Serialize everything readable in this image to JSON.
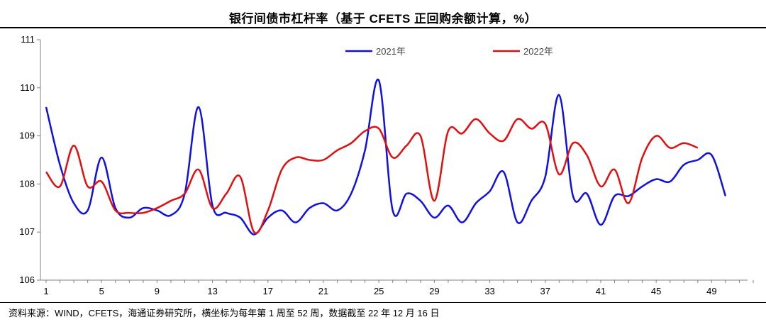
{
  "title": "银行间债市杠杆率（基于 CFETS 正回购余额计算，%）",
  "source": "资料来源：WIND，CFETS，海通证券研究所，横坐标为每年第 1 周至 52 周，数据截至 22 年 12 月 16 日",
  "colors": {
    "s2021": "#1010e0",
    "s2022": "#e01010",
    "axis": "#808080"
  },
  "chart_data": {
    "type": "line",
    "title": "银行间债市杠杆率（基于 CFETS 正回购余额计算，%）",
    "xlabel": "",
    "ylabel": "",
    "xlim": [
      1,
      52
    ],
    "ylim": [
      106,
      111
    ],
    "x_ticks": [
      1,
      5,
      9,
      13,
      17,
      21,
      25,
      29,
      33,
      37,
      41,
      45,
      49
    ],
    "y_ticks": [
      106,
      107,
      108,
      109,
      110,
      111
    ],
    "legend_position": "top",
    "grid": false,
    "series": [
      {
        "name": "2021年",
        "color": "#1010e0",
        "x": [
          1,
          2,
          3,
          4,
          5,
          6,
          7,
          8,
          9,
          10,
          11,
          12,
          13,
          14,
          15,
          16,
          17,
          18,
          19,
          20,
          21,
          22,
          23,
          24,
          25,
          26,
          27,
          28,
          29,
          30,
          31,
          32,
          33,
          34,
          35,
          36,
          37,
          38,
          39,
          40,
          41,
          42,
          43,
          44,
          45,
          46,
          47,
          48,
          49,
          50
        ],
        "values": [
          109.6,
          108.4,
          107.6,
          107.45,
          108.55,
          107.5,
          107.3,
          107.5,
          107.45,
          107.35,
          107.8,
          109.6,
          107.55,
          107.4,
          107.3,
          106.95,
          107.3,
          107.45,
          107.2,
          107.5,
          107.6,
          107.45,
          107.8,
          108.7,
          110.15,
          107.45,
          107.8,
          107.65,
          107.3,
          107.55,
          107.2,
          107.6,
          107.85,
          108.25,
          107.2,
          107.65,
          108.15,
          109.85,
          107.75,
          107.8,
          107.15,
          107.75,
          107.75,
          107.95,
          108.1,
          108.05,
          108.4,
          108.5,
          108.6,
          107.75
        ]
      },
      {
        "name": "2022年",
        "color": "#e01010",
        "x": [
          1,
          2,
          3,
          4,
          5,
          6,
          7,
          8,
          9,
          10,
          11,
          12,
          13,
          14,
          15,
          16,
          17,
          18,
          19,
          20,
          21,
          22,
          23,
          24,
          25,
          26,
          27,
          28,
          29,
          30,
          31,
          32,
          33,
          34,
          35,
          36,
          37,
          38,
          39,
          40,
          41,
          42,
          43,
          44,
          45,
          46,
          47,
          48
        ],
        "values": [
          108.25,
          107.95,
          108.8,
          107.95,
          108.05,
          107.45,
          107.4,
          107.4,
          107.5,
          107.65,
          107.8,
          108.3,
          107.5,
          107.8,
          108.15,
          107.0,
          107.45,
          108.3,
          108.55,
          108.5,
          108.5,
          108.7,
          108.85,
          109.1,
          109.15,
          108.55,
          108.8,
          109.0,
          107.65,
          109.1,
          109.05,
          109.35,
          109.05,
          108.9,
          109.35,
          109.15,
          109.25,
          108.2,
          108.85,
          108.6,
          107.95,
          108.3,
          107.6,
          108.55,
          109.0,
          108.75,
          108.85,
          108.75
        ]
      }
    ]
  }
}
